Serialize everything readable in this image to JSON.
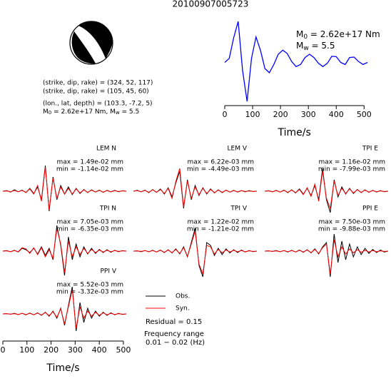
{
  "title": "20100907005723",
  "mechanism": {
    "lines": [
      "(strike, dip, rake) = (324, 52, 117)",
      "(strike, dip, rake) = (105, 45, 60)",
      "(lon., lat, depth) = (103.3, -7.2, 5)"
    ],
    "moment": {
      "m": "M",
      "m_sub": "0",
      "m_text": " = 2.62e+17 Nm, ",
      "w": "M",
      "w_sub": "w",
      "w_text": " = 5.5"
    }
  },
  "stf_labels": {
    "m": "M",
    "m_sub": "0",
    "m_text": " = 2.62e+17 Nm",
    "w": "M",
    "w_sub": "w",
    "w_text": " = 5.5"
  },
  "legend": {
    "obs": "Obs.",
    "syn": "Syn.",
    "residual": "Residual = 0.15",
    "freq_title": "Frequency range",
    "freq_range": "0.01 − 0.02 (Hz)"
  },
  "chart_data": [
    {
      "type": "line",
      "xlabel": "Time/s",
      "xlim": [
        0,
        512
      ],
      "ylim": [
        -1,
        1
      ],
      "xticks": [
        0,
        100,
        200,
        300,
        400,
        500
      ],
      "x": [
        0,
        16,
        32,
        48,
        64,
        80,
        96,
        112,
        128,
        144,
        160,
        176,
        192,
        208,
        224,
        240,
        256,
        272,
        288,
        304,
        320,
        336,
        352,
        368,
        384,
        400,
        416,
        432,
        448,
        464,
        480,
        496,
        512
      ],
      "series": [
        {
          "color": "#0000ff",
          "values": [
            0,
            0.1,
            0.6,
            1.0,
            -0.2,
            -0.95,
            0.1,
            0.62,
            0.3,
            -0.15,
            -0.25,
            -0.05,
            0.2,
            0.3,
            0.22,
            0.02,
            -0.1,
            -0.05,
            0.12,
            0.2,
            0.12,
            -0.02,
            -0.1,
            -0.02,
            0.15,
            0.14,
            0.0,
            -0.05,
            0.12,
            0.13,
            0.02,
            -0.05,
            0.0
          ]
        }
      ]
    },
    {
      "type": "line",
      "title": "LEM N",
      "max_label": "max = 1.49e-02 mm",
      "min_label": "min = -1.14e-02 mm",
      "xlim": [
        0,
        512
      ],
      "ylim": [
        -1,
        1
      ],
      "x": [
        0,
        16,
        32,
        48,
        64,
        80,
        96,
        112,
        128,
        144,
        160,
        176,
        192,
        208,
        224,
        240,
        256,
        272,
        288,
        304,
        320,
        336,
        352,
        368,
        384,
        400,
        416,
        432,
        448,
        464,
        480,
        496,
        512
      ],
      "series": [
        {
          "color": "#000000",
          "values": [
            0,
            0.02,
            -0.03,
            0.05,
            -0.02,
            0.04,
            -0.05,
            0.1,
            -0.08,
            0.15,
            -0.3,
            0.9,
            -0.7,
            0.5,
            -0.3,
            0.2,
            -0.1,
            0.15,
            -0.12,
            0.1,
            -0.08,
            0.06,
            -0.05,
            0.05,
            -0.03,
            0.04,
            -0.04,
            0.03,
            -0.02,
            0.03,
            -0.02,
            0.02,
            0
          ]
        },
        {
          "color": "#ff0000",
          "values": [
            0,
            0.01,
            -0.02,
            0.03,
            -0.02,
            0.03,
            -0.04,
            0.08,
            -0.1,
            0.2,
            -0.35,
            0.85,
            -0.65,
            0.45,
            -0.25,
            0.15,
            -0.1,
            0.1,
            -0.1,
            0.08,
            -0.06,
            0.05,
            -0.04,
            0.04,
            -0.03,
            0.03,
            -0.03,
            0.02,
            -0.02,
            0.02,
            -0.01,
            0.01,
            0
          ]
        }
      ]
    },
    {
      "type": "line",
      "title": "LEM V",
      "max_label": "max = 6.22e-03 mm",
      "min_label": "min = -4.49e-03 mm",
      "xlim": [
        0,
        512
      ],
      "ylim": [
        -1,
        1
      ],
      "x": [
        0,
        16,
        32,
        48,
        64,
        80,
        96,
        112,
        128,
        144,
        160,
        176,
        192,
        208,
        224,
        240,
        256,
        272,
        288,
        304,
        320,
        336,
        352,
        368,
        384,
        400,
        416,
        432,
        448,
        464,
        480,
        496,
        512
      ],
      "series": [
        {
          "color": "#000000",
          "values": [
            0,
            0.03,
            -0.02,
            0.04,
            -0.05,
            0.06,
            -0.04,
            0.08,
            -0.1,
            0.12,
            -0.2,
            0.3,
            0.7,
            -0.6,
            0.4,
            -0.3,
            0.2,
            -0.15,
            0.12,
            -0.1,
            0.08,
            -0.06,
            0.05,
            -0.05,
            0.04,
            -0.03,
            0.03,
            -0.03,
            0.02,
            -0.02,
            0.02,
            -0.01,
            0
          ]
        },
        {
          "color": "#ff0000",
          "values": [
            0,
            0.02,
            -0.02,
            0.03,
            -0.04,
            0.05,
            -0.04,
            0.06,
            -0.08,
            0.1,
            -0.25,
            0.35,
            0.8,
            -0.55,
            0.35,
            -0.25,
            0.15,
            -0.12,
            0.1,
            -0.08,
            0.06,
            -0.05,
            0.04,
            -0.04,
            0.03,
            -0.03,
            0.02,
            -0.02,
            0.02,
            -0.01,
            0.01,
            -0.01,
            0
          ]
        }
      ]
    },
    {
      "type": "line",
      "title": "TPI E",
      "max_label": "max = 1.16e-02 mm",
      "min_label": "min = -7.99e-03 mm",
      "xlim": [
        0,
        512
      ],
      "ylim": [
        -1,
        1
      ],
      "x": [
        0,
        16,
        32,
        48,
        64,
        80,
        96,
        112,
        128,
        144,
        160,
        176,
        192,
        208,
        224,
        240,
        256,
        272,
        288,
        304,
        320,
        336,
        352,
        368,
        384,
        400,
        416,
        432,
        448,
        464,
        480,
        496,
        512
      ],
      "series": [
        {
          "color": "#000000",
          "values": [
            0,
            0.02,
            -0.02,
            0.03,
            -0.03,
            0.04,
            -0.05,
            0.05,
            -0.06,
            0.08,
            -0.1,
            0.1,
            -0.15,
            0.2,
            -0.3,
            0.8,
            -0.3,
            -0.75,
            0.4,
            -0.2,
            0.15,
            -0.1,
            0.1,
            -0.08,
            0.06,
            -0.05,
            0.05,
            -0.04,
            0.03,
            -0.03,
            0.02,
            -0.02,
            0
          ]
        },
        {
          "color": "#ff0000",
          "values": [
            0,
            0.01,
            -0.02,
            0.02,
            -0.03,
            0.03,
            -0.04,
            0.04,
            -0.05,
            0.06,
            -0.12,
            0.12,
            -0.18,
            0.25,
            -0.35,
            0.7,
            -0.25,
            -0.6,
            0.35,
            -0.15,
            0.1,
            -0.08,
            0.08,
            -0.06,
            0.05,
            -0.04,
            0.04,
            -0.03,
            0.02,
            -0.02,
            0.01,
            -0.01,
            0
          ]
        }
      ]
    },
    {
      "type": "line",
      "title": "TPI N",
      "max_label": "max = 7.05e-03 mm",
      "min_label": "min = -6.35e-03 mm",
      "xlim": [
        0,
        512
      ],
      "ylim": [
        -1,
        1
      ],
      "x": [
        0,
        16,
        32,
        48,
        64,
        80,
        96,
        112,
        128,
        144,
        160,
        176,
        192,
        208,
        224,
        240,
        256,
        272,
        288,
        304,
        320,
        336,
        352,
        368,
        384,
        400,
        416,
        432,
        448,
        464,
        480,
        496,
        512
      ],
      "series": [
        {
          "color": "#000000",
          "values": [
            0,
            0.02,
            -0.02,
            0.03,
            -0.03,
            0.1,
            0.05,
            -0.05,
            0.1,
            -0.1,
            0.15,
            -0.15,
            0.1,
            -0.3,
            0.9,
            0.2,
            -0.85,
            0.5,
            -0.3,
            0.25,
            -0.2,
            0.15,
            -0.1,
            0.1,
            -0.08,
            0.06,
            -0.05,
            0.05,
            -0.04,
            0.03,
            -0.02,
            0.02,
            0
          ]
        },
        {
          "color": "#ff0000",
          "values": [
            0,
            0.01,
            -0.02,
            0.02,
            -0.02,
            0.12,
            0.08,
            -0.08,
            0.12,
            -0.12,
            0.12,
            -0.2,
            0.05,
            -0.25,
            0.8,
            0.25,
            -0.75,
            0.35,
            -0.2,
            0.15,
            -0.12,
            0.1,
            -0.08,
            0.06,
            -0.05,
            0.04,
            -0.03,
            0.03,
            -0.02,
            0.02,
            -0.01,
            0.01,
            0
          ]
        }
      ]
    },
    {
      "type": "line",
      "title": "TPI V",
      "max_label": "max = 1.22e-02 mm",
      "min_label": "min = -1.21e-02 mm",
      "xlim": [
        0,
        512
      ],
      "ylim": [
        -1,
        1
      ],
      "x": [
        0,
        16,
        32,
        48,
        64,
        80,
        96,
        112,
        128,
        144,
        160,
        176,
        192,
        208,
        224,
        240,
        256,
        272,
        288,
        304,
        320,
        336,
        352,
        368,
        384,
        400,
        416,
        432,
        448,
        464,
        480,
        496,
        512
      ],
      "series": [
        {
          "color": "#000000",
          "values": [
            0,
            0.01,
            -0.02,
            0.02,
            -0.02,
            0.03,
            -0.03,
            0.04,
            -0.05,
            0.05,
            -0.06,
            0.08,
            -0.1,
            0.15,
            -0.2,
            0.3,
            0.8,
            -0.5,
            -0.9,
            0.3,
            0.2,
            -0.15,
            0.1,
            -0.12,
            0.08,
            -0.06,
            0.05,
            -0.05,
            0.04,
            -0.03,
            0.02,
            -0.02,
            0
          ]
        },
        {
          "color": "#ff0000",
          "values": [
            0,
            0.01,
            -0.01,
            0.02,
            -0.02,
            0.02,
            -0.03,
            0.03,
            -0.04,
            0.04,
            -0.05,
            0.06,
            -0.08,
            0.12,
            -0.18,
            0.25,
            0.7,
            -0.45,
            -0.8,
            0.2,
            0.15,
            -0.1,
            0.06,
            -0.06,
            0.04,
            -0.03,
            0.03,
            -0.02,
            0.02,
            -0.02,
            0.01,
            -0.01,
            0
          ]
        }
      ]
    },
    {
      "type": "line",
      "title": "PPI E",
      "max_label": "max = 7.50e-03 mm",
      "min_label": "min = -9.88e-03 mm",
      "xlim": [
        0,
        512
      ],
      "ylim": [
        -1,
        1
      ],
      "x": [
        0,
        16,
        32,
        48,
        64,
        80,
        96,
        112,
        128,
        144,
        160,
        176,
        192,
        208,
        224,
        240,
        256,
        272,
        288,
        304,
        320,
        336,
        352,
        368,
        384,
        400,
        416,
        432,
        448,
        464,
        480,
        496,
        512
      ],
      "series": [
        {
          "color": "#000000",
          "values": [
            0,
            0.01,
            -0.01,
            0.02,
            -0.02,
            0.02,
            -0.03,
            0.03,
            -0.03,
            0.04,
            -0.04,
            0.05,
            -0.06,
            0.08,
            -0.1,
            0.15,
            0.3,
            -0.9,
            0.6,
            -0.4,
            0.35,
            -0.3,
            0.25,
            -0.2,
            0.15,
            -0.12,
            0.1,
            -0.08,
            0.06,
            -0.05,
            0.04,
            -0.03,
            0
          ]
        },
        {
          "color": "#ff0000",
          "values": [
            0,
            0.01,
            -0.01,
            0.01,
            -0.02,
            0.02,
            -0.02,
            0.02,
            -0.03,
            0.03,
            -0.03,
            0.04,
            -0.05,
            0.06,
            -0.08,
            0.12,
            0.25,
            -0.8,
            0.4,
            -0.2,
            0.15,
            -0.1,
            0.08,
            -0.06,
            0.05,
            -0.04,
            0.03,
            -0.03,
            0.02,
            -0.02,
            0.01,
            -0.01,
            0
          ]
        }
      ]
    },
    {
      "type": "line",
      "title": "PPI V",
      "max_label": "max = 5.52e-03 mm",
      "min_label": "min = -3.32e-03 mm",
      "xlabel": "Time/s",
      "xlim": [
        0,
        512
      ],
      "ylim": [
        -1,
        1
      ],
      "xticks": [
        0,
        100,
        200,
        300,
        400,
        500
      ],
      "x": [
        0,
        16,
        32,
        48,
        64,
        80,
        96,
        112,
        128,
        144,
        160,
        176,
        192,
        208,
        224,
        240,
        256,
        272,
        288,
        304,
        320,
        336,
        352,
        368,
        384,
        400,
        416,
        432,
        448,
        464,
        480,
        496,
        512
      ],
      "series": [
        {
          "color": "#000000",
          "values": [
            0,
            0.01,
            -0.01,
            0.02,
            -0.02,
            0.02,
            -0.03,
            0.03,
            -0.03,
            0.04,
            -0.05,
            0.06,
            -0.08,
            0.1,
            -0.15,
            0.2,
            -0.4,
            0.3,
            0.95,
            -0.6,
            0.4,
            -0.3,
            0.2,
            -0.15,
            0.1,
            -0.08,
            0.06,
            -0.05,
            0.04,
            -0.03,
            0.02,
            -0.02,
            0
          ]
        },
        {
          "color": "#ff0000",
          "values": [
            0,
            0.01,
            -0.01,
            0.01,
            -0.02,
            0.02,
            -0.02,
            0.02,
            -0.03,
            0.03,
            -0.04,
            0.05,
            -0.06,
            0.08,
            -0.12,
            0.18,
            -0.35,
            0.25,
            0.85,
            -0.5,
            0.25,
            -0.15,
            0.1,
            -0.08,
            0.06,
            -0.05,
            0.04,
            -0.03,
            0.02,
            -0.02,
            0.01,
            -0.01,
            0
          ]
        }
      ]
    }
  ]
}
